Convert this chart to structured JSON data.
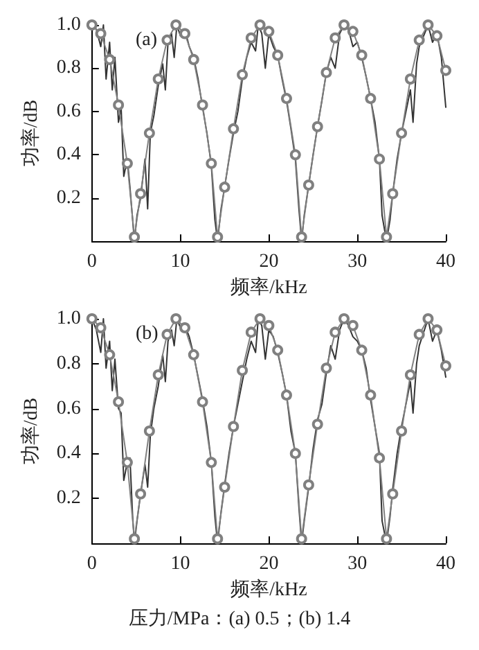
{
  "chart_data": [
    {
      "type": "line",
      "xlabel": "频率/kHz",
      "ylabel": "功率/dB",
      "xlim": [
        0,
        40
      ],
      "xticks": [
        0,
        10,
        20,
        30,
        40
      ],
      "ylim": [
        0,
        1
      ],
      "yticks": [
        0.2,
        0.4,
        0.6,
        0.8,
        {
          "value": 1,
          "label": "1.0"
        }
      ],
      "annotations": [
        "(a)"
      ],
      "series": [
        {
          "color": "#333333",
          "marker": "none",
          "x": [
            0,
            0.5,
            1,
            1.3,
            1.6,
            2,
            2.3,
            2.6,
            3,
            3.3,
            3.6,
            4,
            4.3,
            4.6,
            4.8,
            5.1,
            5.5,
            6,
            6.3,
            6.6,
            7,
            7.5,
            8,
            8.3,
            8.6,
            9,
            9.3,
            9.6,
            10,
            10.5,
            11,
            11.5,
            12,
            12.5,
            13,
            13.5,
            13.9,
            14.2,
            14.6,
            15,
            15.5,
            16,
            16.5,
            17,
            17.5,
            18,
            18.5,
            18.8,
            19.2,
            19.6,
            20,
            20.5,
            21,
            21.5,
            22,
            22.5,
            23,
            23.4,
            23.7,
            24,
            24.5,
            25,
            25.5,
            26,
            26.5,
            27,
            27.5,
            28,
            28.5,
            29,
            29.5,
            30,
            30.5,
            31,
            31.5,
            32,
            32.5,
            32.8,
            33.3,
            33.7,
            34,
            34.5,
            35,
            35.5,
            36,
            36.3,
            36.7,
            37,
            37.5,
            38,
            38.5,
            39,
            39.5,
            40
          ],
          "values": [
            1.0,
            0.98,
            0.9,
            1.0,
            0.75,
            0.92,
            0.7,
            0.85,
            0.55,
            0.62,
            0.3,
            0.38,
            0.25,
            0.1,
            0.0,
            0.12,
            0.2,
            0.38,
            0.15,
            0.5,
            0.58,
            0.72,
            0.82,
            0.7,
            0.92,
            0.96,
            0.85,
            1.0,
            0.95,
            0.98,
            0.9,
            0.85,
            0.75,
            0.62,
            0.5,
            0.35,
            0.1,
            0.0,
            0.15,
            0.25,
            0.38,
            0.5,
            0.6,
            0.75,
            0.85,
            0.92,
            0.88,
            1.0,
            0.96,
            0.8,
            0.96,
            0.9,
            0.86,
            0.75,
            0.65,
            0.52,
            0.38,
            0.15,
            0.0,
            0.12,
            0.26,
            0.4,
            0.53,
            0.65,
            0.78,
            0.85,
            0.8,
            0.96,
            1.0,
            0.98,
            0.9,
            0.92,
            0.85,
            0.76,
            0.66,
            0.55,
            0.38,
            0.12,
            0.0,
            0.1,
            0.22,
            0.38,
            0.5,
            0.6,
            0.7,
            0.55,
            0.82,
            0.9,
            0.95,
            1.0,
            0.92,
            0.96,
            0.85,
            0.62
          ]
        },
        {
          "color": "#808080",
          "marker": "circle",
          "x": [
            0,
            1,
            2,
            3,
            4,
            4.8,
            5.5,
            6.5,
            7.5,
            8.5,
            9.5,
            10.5,
            11.5,
            12.5,
            13.5,
            14.2,
            15,
            16,
            17,
            18,
            19,
            20,
            21,
            22,
            23,
            23.7,
            24.5,
            25.5,
            26.5,
            27.5,
            28.5,
            29.5,
            30.5,
            31.5,
            32.5,
            33.3,
            34,
            35,
            36,
            37,
            38,
            39,
            40
          ],
          "values": [
            1.0,
            0.96,
            0.84,
            0.63,
            0.36,
            0.02,
            0.22,
            0.5,
            0.75,
            0.93,
            1.0,
            0.96,
            0.84,
            0.63,
            0.36,
            0.02,
            0.25,
            0.52,
            0.77,
            0.94,
            1.0,
            0.97,
            0.86,
            0.66,
            0.4,
            0.02,
            0.26,
            0.53,
            0.78,
            0.94,
            1.0,
            0.97,
            0.86,
            0.66,
            0.38,
            0.02,
            0.22,
            0.5,
            0.75,
            0.93,
            1.0,
            0.95,
            0.79
          ]
        }
      ]
    },
    {
      "type": "line",
      "xlabel": "频率/kHz",
      "ylabel": "功率/dB",
      "xlim": [
        0,
        40
      ],
      "xticks": [
        0,
        10,
        20,
        30,
        40
      ],
      "ylim": [
        0,
        1
      ],
      "yticks": [
        0.2,
        0.4,
        0.6,
        0.8,
        {
          "value": 1,
          "label": "1.0"
        }
      ],
      "annotations": [
        "(b)",
        "压力/MPa：(a) 0.5；(b) 1.4"
      ],
      "series": [
        {
          "color": "#333333",
          "marker": "none",
          "x": [
            0,
            0.5,
            1,
            1.3,
            1.6,
            2,
            2.3,
            2.6,
            3,
            3.3,
            3.6,
            4,
            4.3,
            4.6,
            4.8,
            5.1,
            5.5,
            6,
            6.3,
            6.6,
            7,
            7.5,
            8,
            8.3,
            8.6,
            9,
            9.3,
            9.6,
            10,
            10.5,
            11,
            11.5,
            12,
            12.5,
            13,
            13.5,
            13.9,
            14.2,
            14.6,
            15,
            15.5,
            16,
            16.5,
            17,
            17.5,
            18,
            18.5,
            18.8,
            19.2,
            19.6,
            20,
            20.5,
            21,
            21.5,
            22,
            22.5,
            23,
            23.4,
            23.7,
            24,
            24.5,
            25,
            25.5,
            26,
            26.5,
            27,
            27.5,
            28,
            28.5,
            29,
            29.5,
            30,
            30.5,
            31,
            31.5,
            32,
            32.5,
            32.8,
            33.3,
            33.7,
            34,
            34.5,
            35,
            35.5,
            36,
            36.3,
            36.7,
            37,
            37.5,
            38,
            38.5,
            39,
            39.5,
            40
          ],
          "values": [
            1.0,
            0.95,
            0.85,
            1.0,
            0.78,
            0.9,
            0.68,
            0.82,
            0.6,
            0.58,
            0.28,
            0.36,
            0.38,
            0.12,
            0.0,
            0.1,
            0.22,
            0.35,
            0.25,
            0.48,
            0.6,
            0.7,
            0.84,
            0.72,
            0.9,
            0.95,
            0.88,
            1.0,
            0.96,
            0.97,
            0.92,
            0.84,
            0.74,
            0.64,
            0.52,
            0.36,
            0.12,
            0.0,
            0.14,
            0.26,
            0.4,
            0.52,
            0.62,
            0.72,
            0.82,
            0.9,
            0.85,
            1.0,
            0.97,
            0.82,
            0.95,
            0.92,
            0.85,
            0.76,
            0.66,
            0.5,
            0.4,
            0.16,
            0.0,
            0.1,
            0.25,
            0.42,
            0.55,
            0.62,
            0.76,
            0.88,
            0.82,
            0.95,
            1.0,
            0.97,
            0.92,
            0.9,
            0.86,
            0.78,
            0.64,
            0.52,
            0.4,
            0.1,
            0.0,
            0.12,
            0.24,
            0.4,
            0.52,
            0.62,
            0.72,
            0.58,
            0.8,
            0.88,
            0.94,
            1.0,
            0.9,
            0.95,
            0.86,
            0.74
          ]
        },
        {
          "color": "#808080",
          "marker": "circle",
          "x": [
            0,
            1,
            2,
            3,
            4,
            4.8,
            5.5,
            6.5,
            7.5,
            8.5,
            9.5,
            10.5,
            11.5,
            12.5,
            13.5,
            14.2,
            15,
            16,
            17,
            18,
            19,
            20,
            21,
            22,
            23,
            23.7,
            24.5,
            25.5,
            26.5,
            27.5,
            28.5,
            29.5,
            30.5,
            31.5,
            32.5,
            33.3,
            34,
            35,
            36,
            37,
            38,
            39,
            40
          ],
          "values": [
            1.0,
            0.96,
            0.84,
            0.63,
            0.36,
            0.02,
            0.22,
            0.5,
            0.75,
            0.93,
            1.0,
            0.96,
            0.84,
            0.63,
            0.36,
            0.02,
            0.25,
            0.52,
            0.77,
            0.94,
            1.0,
            0.97,
            0.86,
            0.66,
            0.4,
            0.02,
            0.26,
            0.53,
            0.78,
            0.94,
            1.0,
            0.97,
            0.86,
            0.66,
            0.38,
            0.02,
            0.22,
            0.5,
            0.75,
            0.93,
            1.0,
            0.95,
            0.79
          ]
        }
      ]
    }
  ]
}
